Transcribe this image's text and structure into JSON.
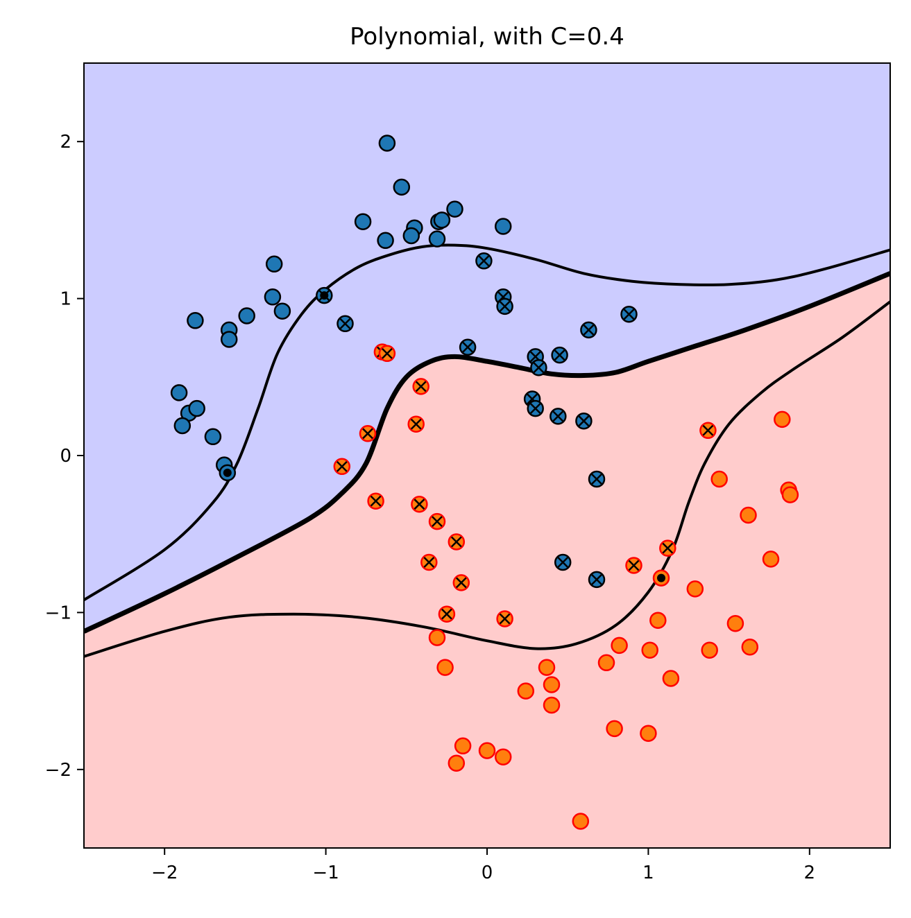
{
  "chart_data": {
    "type": "scatter",
    "title": "Polynomial, with C=0.4",
    "xlim": [
      -2.5,
      2.5
    ],
    "ylim": [
      -2.5,
      2.5
    ],
    "x_ticks": [
      -2,
      -1,
      0,
      1,
      2
    ],
    "y_ticks": [
      -2,
      -1,
      0,
      1,
      2
    ],
    "x_tick_labels": [
      "−2",
      "−1",
      "0",
      "1",
      "2"
    ],
    "y_tick_labels": [
      "−2",
      "−1",
      "0",
      "1",
      "2"
    ],
    "grid": false,
    "colors": {
      "class0_region": "#ccccff",
      "class1_region": "#ffcccc",
      "class0_point": "#1f77b4",
      "class1_point": "#ff7f0e",
      "class1_edge": "#ff0000",
      "boundary": "#000000"
    },
    "decision_boundary": [
      [
        -2.5,
        -1.12
      ],
      [
        -2.0,
        -0.88
      ],
      [
        -1.5,
        -0.62
      ],
      [
        -1.1,
        -0.4
      ],
      [
        -0.9,
        -0.24
      ],
      [
        -0.75,
        -0.05
      ],
      [
        -0.62,
        0.3
      ],
      [
        -0.5,
        0.5
      ],
      [
        -0.35,
        0.6
      ],
      [
        -0.2,
        0.63
      ],
      [
        0.0,
        0.6
      ],
      [
        0.2,
        0.56
      ],
      [
        0.4,
        0.52
      ],
      [
        0.6,
        0.51
      ],
      [
        0.8,
        0.53
      ],
      [
        1.0,
        0.6
      ],
      [
        1.3,
        0.7
      ],
      [
        1.6,
        0.8
      ],
      [
        2.0,
        0.95
      ],
      [
        2.5,
        1.16
      ]
    ],
    "margin_upper": [
      [
        -2.5,
        -0.92
      ],
      [
        -2.0,
        -0.6
      ],
      [
        -1.7,
        -0.3
      ],
      [
        -1.55,
        -0.05
      ],
      [
        -1.42,
        0.3
      ],
      [
        -1.3,
        0.65
      ],
      [
        -1.15,
        0.9
      ],
      [
        -1.0,
        1.06
      ],
      [
        -0.8,
        1.2
      ],
      [
        -0.6,
        1.28
      ],
      [
        -0.4,
        1.33
      ],
      [
        -0.2,
        1.34
      ],
      [
        0.0,
        1.32
      ],
      [
        0.3,
        1.25
      ],
      [
        0.6,
        1.16
      ],
      [
        0.9,
        1.11
      ],
      [
        1.2,
        1.09
      ],
      [
        1.5,
        1.09
      ],
      [
        1.8,
        1.12
      ],
      [
        2.1,
        1.19
      ],
      [
        2.5,
        1.31
      ]
    ],
    "margin_lower": [
      [
        -2.5,
        -1.28
      ],
      [
        -2.0,
        -1.12
      ],
      [
        -1.6,
        -1.03
      ],
      [
        -1.2,
        -1.01
      ],
      [
        -0.8,
        -1.03
      ],
      [
        -0.4,
        -1.09
      ],
      [
        0.0,
        -1.18
      ],
      [
        0.3,
        -1.23
      ],
      [
        0.55,
        -1.2
      ],
      [
        0.8,
        -1.08
      ],
      [
        1.0,
        -0.87
      ],
      [
        1.15,
        -0.6
      ],
      [
        1.25,
        -0.3
      ],
      [
        1.35,
        -0.05
      ],
      [
        1.5,
        0.2
      ],
      [
        1.7,
        0.4
      ],
      [
        1.9,
        0.55
      ],
      [
        2.2,
        0.75
      ],
      [
        2.5,
        0.98
      ]
    ],
    "series": [
      {
        "class": 0,
        "points": [
          [
            -0.62,
            1.99
          ],
          [
            -0.53,
            1.71
          ],
          [
            -0.2,
            1.57
          ],
          [
            -0.77,
            1.49
          ],
          [
            -0.45,
            1.45
          ],
          [
            -0.3,
            1.49
          ],
          [
            -0.28,
            1.5
          ],
          [
            0.1,
            1.46
          ],
          [
            -0.47,
            1.4
          ],
          [
            -0.63,
            1.37
          ],
          [
            -0.31,
            1.38
          ],
          [
            -1.32,
            1.22
          ],
          [
            -1.33,
            1.01
          ],
          [
            -1.27,
            0.92
          ],
          [
            -1.49,
            0.89
          ],
          [
            -1.81,
            0.86
          ],
          [
            -1.6,
            0.8
          ],
          [
            -1.6,
            0.74
          ],
          [
            -1.91,
            0.4
          ],
          [
            -1.85,
            0.27
          ],
          [
            -1.8,
            0.3
          ],
          [
            -1.89,
            0.19
          ],
          [
            -1.7,
            0.12
          ],
          [
            -1.63,
            -0.06
          ],
          [
            -1.61,
            -0.11
          ],
          [
            -1.01,
            1.02
          ],
          [
            -0.02,
            1.24
          ],
          [
            0.1,
            1.01
          ],
          [
            0.11,
            0.95
          ],
          [
            -0.88,
            0.84
          ],
          [
            0.88,
            0.9
          ],
          [
            0.63,
            0.8
          ],
          [
            -0.12,
            0.69
          ],
          [
            0.3,
            0.63
          ],
          [
            0.32,
            0.56
          ],
          [
            0.45,
            0.64
          ],
          [
            0.28,
            0.36
          ],
          [
            0.3,
            0.3
          ],
          [
            0.44,
            0.25
          ],
          [
            0.6,
            0.22
          ],
          [
            0.68,
            -0.15
          ],
          [
            0.47,
            -0.68
          ],
          [
            0.68,
            -0.79
          ]
        ],
        "support_vector_index": [
          25,
          26,
          27,
          28,
          29,
          30,
          31,
          32,
          33,
          34,
          35,
          36,
          37,
          38,
          39,
          40,
          41,
          42
        ],
        "free_sv_index": [
          24,
          25
        ]
      },
      {
        "class": 1,
        "points": [
          [
            -0.65,
            0.66
          ],
          [
            -0.62,
            0.65
          ],
          [
            -0.41,
            0.44
          ],
          [
            -0.74,
            0.14
          ],
          [
            -0.44,
            0.2
          ],
          [
            -0.9,
            -0.07
          ],
          [
            -0.69,
            -0.29
          ],
          [
            -0.42,
            -0.31
          ],
          [
            -0.31,
            -0.42
          ],
          [
            -0.19,
            -0.55
          ],
          [
            -0.36,
            -0.68
          ],
          [
            -0.16,
            -0.81
          ],
          [
            -0.25,
            -1.01
          ],
          [
            0.11,
            -1.04
          ],
          [
            0.91,
            -0.7
          ],
          [
            1.12,
            -0.59
          ],
          [
            1.37,
            0.16
          ],
          [
            1.08,
            -0.78
          ],
          [
            1.83,
            0.23
          ],
          [
            1.44,
            -0.15
          ],
          [
            1.87,
            -0.22
          ],
          [
            1.88,
            -0.25
          ],
          [
            1.62,
            -0.38
          ],
          [
            1.76,
            -0.66
          ],
          [
            1.29,
            -0.85
          ],
          [
            -0.31,
            -1.16
          ],
          [
            1.06,
            -1.05
          ],
          [
            1.54,
            -1.07
          ],
          [
            0.82,
            -1.21
          ],
          [
            1.01,
            -1.24
          ],
          [
            1.38,
            -1.24
          ],
          [
            1.63,
            -1.22
          ],
          [
            -0.26,
            -1.35
          ],
          [
            0.37,
            -1.35
          ],
          [
            0.74,
            -1.32
          ],
          [
            1.14,
            -1.42
          ],
          [
            0.4,
            -1.46
          ],
          [
            0.24,
            -1.5
          ],
          [
            0.4,
            -1.59
          ],
          [
            0.79,
            -1.74
          ],
          [
            1.0,
            -1.77
          ],
          [
            -0.15,
            -1.85
          ],
          [
            0.0,
            -1.88
          ],
          [
            0.1,
            -1.92
          ],
          [
            -0.19,
            -1.96
          ],
          [
            0.58,
            -2.33
          ]
        ],
        "support_vector_index": [
          0,
          1,
          2,
          3,
          4,
          5,
          6,
          7,
          8,
          9,
          10,
          11,
          12,
          13,
          14,
          15,
          16
        ],
        "free_sv_index": [
          17
        ]
      }
    ]
  }
}
